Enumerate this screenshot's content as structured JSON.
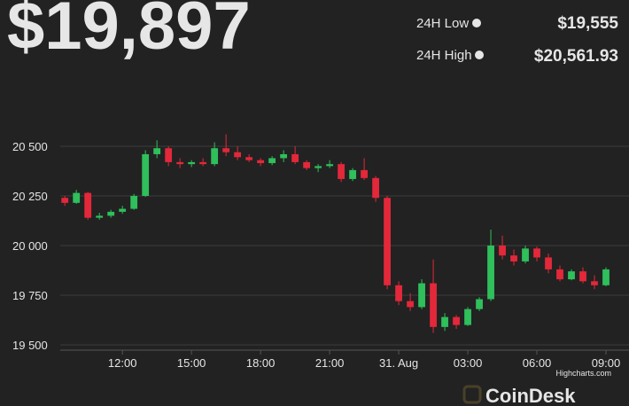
{
  "header": {
    "price": "$19,897",
    "low_label": "24H Low",
    "low_value": "$19,555",
    "high_label": "24H High",
    "high_value": "$20,561.93"
  },
  "chart_data": {
    "type": "candlestick",
    "x": [
      9.5,
      10,
      10.5,
      11,
      11.5,
      12,
      12.5,
      13,
      13.5,
      14,
      14.5,
      15,
      15.5,
      16,
      16.5,
      17,
      17.5,
      18,
      18.5,
      19,
      19.5,
      20,
      20.5,
      21,
      21.5,
      22,
      22.5,
      23,
      23.5,
      24,
      24.5,
      25,
      25.5,
      26,
      26.5,
      27,
      27.5,
      28,
      28.5,
      29,
      29.5,
      30,
      30.5,
      31,
      31.5,
      32,
      32.5,
      33
    ],
    "open": [
      20240,
      20215,
      20265,
      20140,
      20150,
      20170,
      20185,
      20250,
      20460,
      20490,
      20420,
      20410,
      20420,
      20410,
      20490,
      20470,
      20445,
      20430,
      20415,
      20440,
      20460,
      20420,
      20390,
      20400,
      20410,
      20335,
      20380,
      20340,
      20240,
      19800,
      19720,
      19690,
      19810,
      19590,
      19640,
      19600,
      19680,
      19730,
      20000,
      19950,
      19920,
      19985,
      19940,
      19880,
      19830,
      19870,
      19820,
      19800
    ],
    "high": [
      20250,
      20280,
      20270,
      20165,
      20180,
      20200,
      20260,
      20480,
      20530,
      20500,
      20440,
      20430,
      20440,
      20520,
      20560,
      20500,
      20460,
      20440,
      20450,
      20480,
      20500,
      20430,
      20410,
      20430,
      20420,
      20390,
      20440,
      20350,
      20250,
      19820,
      19760,
      19830,
      19930,
      19660,
      19650,
      19690,
      19740,
      20080,
      20050,
      19980,
      20000,
      19995,
      19960,
      19900,
      19880,
      19890,
      19850,
      19890
    ],
    "low": [
      20200,
      20210,
      20130,
      20130,
      20140,
      20160,
      20180,
      20245,
      20440,
      20400,
      20390,
      20395,
      20400,
      20400,
      20450,
      20430,
      20420,
      20400,
      20405,
      20420,
      20410,
      20380,
      20370,
      20390,
      20320,
      20325,
      20330,
      20220,
      19780,
      19700,
      19670,
      19680,
      19560,
      19570,
      19580,
      19595,
      19670,
      19720,
      19930,
      19900,
      19910,
      19920,
      19860,
      19820,
      19825,
      19810,
      19780,
      19795
    ],
    "close": [
      20215,
      20265,
      20140,
      20150,
      20170,
      20185,
      20250,
      20460,
      20490,
      20420,
      20410,
      20420,
      20410,
      20490,
      20470,
      20445,
      20430,
      20415,
      20440,
      20460,
      20420,
      20390,
      20400,
      20410,
      20335,
      20380,
      20340,
      20240,
      19800,
      19720,
      19690,
      19810,
      19590,
      19640,
      19600,
      19680,
      19730,
      20000,
      19950,
      19920,
      19985,
      19940,
      19880,
      19830,
      19870,
      19820,
      19800,
      19880
    ],
    "up_color": "#2fbf5b",
    "down_color": "#e3283a",
    "xlim": [
      9.3,
      33.5
    ],
    "ylim": [
      19450,
      20720
    ],
    "xticks": [
      {
        "value": 12,
        "label": "12:00"
      },
      {
        "value": 15,
        "label": "15:00"
      },
      {
        "value": 18,
        "label": "18:00"
      },
      {
        "value": 21,
        "label": "21:00"
      },
      {
        "value": 24,
        "label": "31. Aug"
      },
      {
        "value": 27,
        "label": "03:00"
      },
      {
        "value": 30,
        "label": "06:00"
      },
      {
        "value": 33,
        "label": "09:00"
      }
    ],
    "yticks": [
      {
        "value": 19500,
        "label": "19 500"
      },
      {
        "value": 19750,
        "label": "19 750"
      },
      {
        "value": 20000,
        "label": "20 000"
      },
      {
        "value": 20250,
        "label": "20 250"
      },
      {
        "value": 20500,
        "label": "20 500"
      }
    ],
    "grid": true
  },
  "credits": "Highcharts.com",
  "logo": "CoinDesk"
}
